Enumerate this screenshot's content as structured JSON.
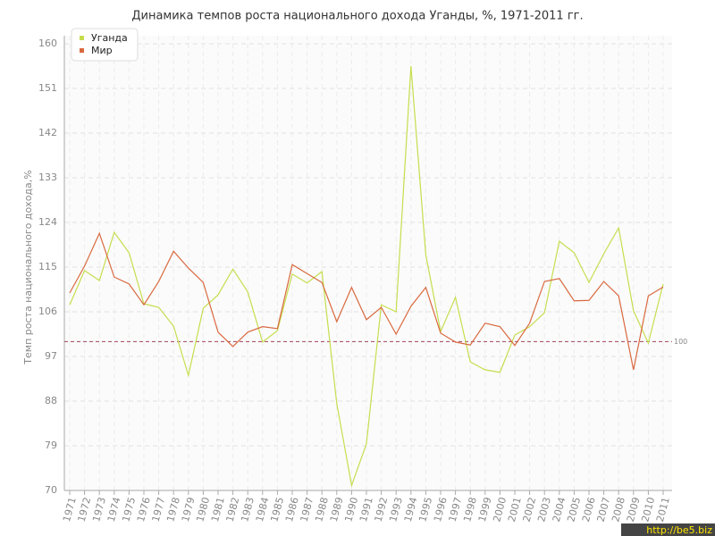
{
  "chart_data": {
    "type": "line",
    "title": "Динамика темпов роста национального дохода Уганды, %, 1971-2011 гг.",
    "y_label": "Темп роста национального дохода,%",
    "categories": [
      "1971",
      "1972",
      "1973",
      "1974",
      "1975",
      "1976",
      "1977",
      "1978",
      "1979",
      "1980",
      "1981",
      "1982",
      "1983",
      "1984",
      "1985",
      "1986",
      "1987",
      "1988",
      "1989",
      "1990",
      "1991",
      "1992",
      "1993",
      "1994",
      "1995",
      "1996",
      "1997",
      "1998",
      "1999",
      "2000",
      "2001",
      "2002",
      "2003",
      "2004",
      "2005",
      "2006",
      "2007",
      "2008",
      "2009",
      "2010",
      "2011"
    ],
    "series": [
      {
        "name": "Уганда",
        "color": "#c5de4e",
        "values": [
          107.4,
          114.3,
          112.3,
          122,
          117.9,
          107.6,
          106.9,
          103.1,
          93.2,
          106.7,
          109.4,
          114.6,
          110,
          99.9,
          102.2,
          113.6,
          111.8,
          114.1,
          87.5,
          71,
          79.4,
          107.4,
          106,
          155.5,
          117.5,
          102,
          108.9,
          95.9,
          94.3,
          93.8,
          101.3,
          103,
          105.8,
          120.2,
          117.9,
          111.9,
          117.7,
          122.9,
          106.2,
          99.7,
          111.6
        ]
      },
      {
        "name": "Мир",
        "color": "#d9693f",
        "values": [
          109.8,
          115.2,
          121.8,
          113,
          111.6,
          107.4,
          112.1,
          118.2,
          114.8,
          111.9,
          101.9,
          99,
          101.9,
          103,
          102.6,
          115.5,
          113.7,
          111.9,
          104,
          110.9,
          104.4,
          106.9,
          101.5,
          107.1,
          110.9,
          101.7,
          99.9,
          99.3,
          103.7,
          103,
          99.2,
          103.7,
          112.1,
          112.7,
          108.2,
          108.3,
          112.1,
          109.2,
          94.3,
          109.2,
          111
        ]
      }
    ],
    "reference_line": 100,
    "reference_color": "#a0435a",
    "ylim": [
      70,
      160
    ],
    "yticks": [
      70,
      79,
      88,
      97,
      106,
      115,
      124,
      133,
      142,
      151,
      160
    ],
    "grid": true,
    "legend": "top-left",
    "watermark": "http://be5.biz"
  }
}
